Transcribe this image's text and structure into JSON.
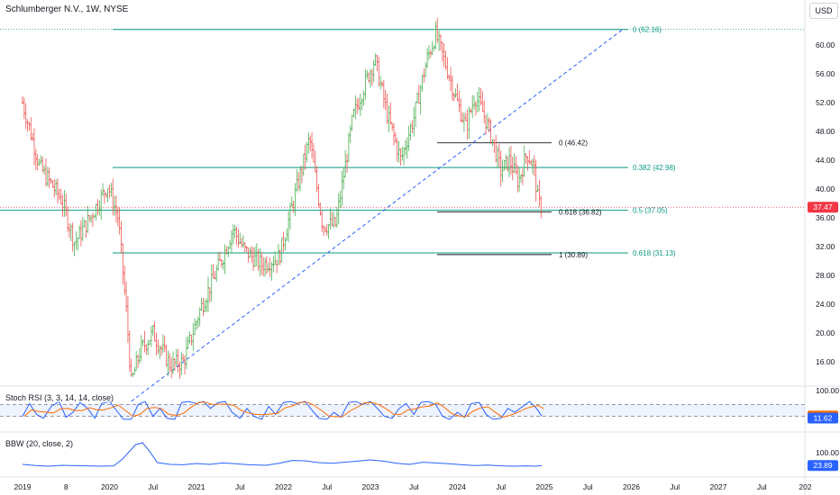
{
  "header": {
    "title": "Schlumberger N.V., 1W, NYSE",
    "currency_button": "USD"
  },
  "indicators": {
    "stoch_label": "Stoch RSI (3, 3, 14, 14, close)",
    "bbw_label": "BBW (20, close, 2)"
  },
  "colors": {
    "up": "#26a69a",
    "down": "#ef5350",
    "candle_up": "#4caf50",
    "fib_green": "#089981",
    "trendline": "#2962ff",
    "price_badge": "#f23645",
    "k_line": "#2962ff",
    "d_line": "#ff6d00",
    "bbw_line": "#2962ff",
    "value_badge": "#2962ff"
  },
  "chart_data": {
    "type": "candlestick",
    "symbol": "Schlumberger N.V.",
    "interval": "1W",
    "exchange": "NYSE",
    "last_price": "37.47",
    "yaxis_ticks": [
      "60.00",
      "56.00",
      "52.00",
      "48.00",
      "44.00",
      "40.00",
      "36.00",
      "32.00",
      "28.00",
      "24.00",
      "20.00",
      "16.00"
    ],
    "xaxis_ticks": [
      "2019",
      "8",
      "2020",
      "Jul",
      "2021",
      "Jul",
      "2022",
      "Jul",
      "2023",
      "Jul",
      "2024",
      "Jul",
      "2025",
      "Jul",
      "2026",
      "Jul",
      "2027",
      "Jul",
      "202"
    ],
    "weekly_close_path": [
      {
        "t": 2019.0,
        "price": 52.0
      },
      {
        "t": 2019.2,
        "price": 43.0
      },
      {
        "t": 2019.45,
        "price": 38.5
      },
      {
        "t": 2019.6,
        "price": 32.5
      },
      {
        "t": 2019.8,
        "price": 36.5
      },
      {
        "t": 2019.98,
        "price": 40.5
      },
      {
        "t": 2020.1,
        "price": 36.0
      },
      {
        "t": 2020.2,
        "price": 22.0
      },
      {
        "t": 2020.25,
        "price": 13.0
      },
      {
        "t": 2020.35,
        "price": 17.5
      },
      {
        "t": 2020.5,
        "price": 20.0
      },
      {
        "t": 2020.7,
        "price": 15.5
      },
      {
        "t": 2020.85,
        "price": 16.0
      },
      {
        "t": 2021.05,
        "price": 23.5
      },
      {
        "t": 2021.3,
        "price": 30.5
      },
      {
        "t": 2021.42,
        "price": 34.5
      },
      {
        "t": 2021.55,
        "price": 31.5
      },
      {
        "t": 2021.75,
        "price": 29.5
      },
      {
        "t": 2021.95,
        "price": 30.5
      },
      {
        "t": 2022.15,
        "price": 40.0
      },
      {
        "t": 2022.3,
        "price": 47.0
      },
      {
        "t": 2022.45,
        "price": 35.0
      },
      {
        "t": 2022.6,
        "price": 35.0
      },
      {
        "t": 2022.8,
        "price": 50.0
      },
      {
        "t": 2022.95,
        "price": 55.0
      },
      {
        "t": 2023.05,
        "price": 58.0
      },
      {
        "t": 2023.2,
        "price": 50.0
      },
      {
        "t": 2023.35,
        "price": 44.0
      },
      {
        "t": 2023.5,
        "price": 50.0
      },
      {
        "t": 2023.65,
        "price": 58.0
      },
      {
        "t": 2023.75,
        "price": 61.5
      },
      {
        "t": 2023.9,
        "price": 56.0
      },
      {
        "t": 2024.0,
        "price": 52.0
      },
      {
        "t": 2024.1,
        "price": 48.5
      },
      {
        "t": 2024.2,
        "price": 53.0
      },
      {
        "t": 2024.3,
        "price": 50.5
      },
      {
        "t": 2024.4,
        "price": 47.0
      },
      {
        "t": 2024.5,
        "price": 42.5
      },
      {
        "t": 2024.6,
        "price": 44.0
      },
      {
        "t": 2024.7,
        "price": 41.0
      },
      {
        "t": 2024.8,
        "price": 45.0
      },
      {
        "t": 2024.88,
        "price": 43.0
      },
      {
        "t": 2024.93,
        "price": 38.0
      },
      {
        "t": 2024.97,
        "price": 37.47
      }
    ],
    "trendline": [
      {
        "t": 2020.25,
        "price": 10.5
      },
      {
        "t": 2025.9,
        "price": 62.16
      }
    ],
    "fib_right": [
      {
        "ratio": "0",
        "value": "62.16",
        "price": 62.16,
        "label": "0 (62.16)"
      },
      {
        "ratio": "0.382",
        "value": "42.98",
        "price": 42.98,
        "label": "0.382 (42.98)"
      },
      {
        "ratio": "0.5",
        "value": "37.05",
        "price": 37.05,
        "label": "0.5 (37.05)"
      },
      {
        "ratio": "0.618",
        "value": "31.13",
        "price": 31.13,
        "label": "0.618 (31.13)"
      }
    ],
    "fib_inner": [
      {
        "ratio": "0",
        "value": "46.42",
        "price": 46.42,
        "label": "0 (46.42)"
      },
      {
        "ratio": "0.618",
        "value": "36.82",
        "price": 36.82,
        "label": "0.618 (36.82)"
      },
      {
        "ratio": "1",
        "value": "30.89",
        "price": 30.89,
        "label": "1 (30.89)"
      }
    ],
    "stoch_rsi": {
      "yaxis_ticks": [
        "100.00"
      ],
      "bands": [
        80,
        20
      ],
      "k_value": "21.43",
      "d_value": "11.62",
      "k_path": [
        {
          "t": 2019.0,
          "v": 20
        },
        {
          "t": 2019.08,
          "v": 85
        },
        {
          "t": 2019.16,
          "v": 30
        },
        {
          "t": 2019.24,
          "v": 10
        },
        {
          "t": 2019.33,
          "v": 70
        },
        {
          "t": 2019.42,
          "v": 95
        },
        {
          "t": 2019.5,
          "v": 15
        },
        {
          "t": 2019.58,
          "v": 40
        },
        {
          "t": 2019.66,
          "v": 90
        },
        {
          "t": 2019.75,
          "v": 60
        },
        {
          "t": 2019.83,
          "v": 10
        },
        {
          "t": 2019.91,
          "v": 85
        },
        {
          "t": 2020.0,
          "v": 95
        },
        {
          "t": 2020.08,
          "v": 50
        },
        {
          "t": 2020.16,
          "v": 5
        },
        {
          "t": 2020.25,
          "v": 5
        },
        {
          "t": 2020.33,
          "v": 80
        },
        {
          "t": 2020.41,
          "v": 95
        },
        {
          "t": 2020.5,
          "v": 20
        },
        {
          "t": 2020.58,
          "v": 60
        },
        {
          "t": 2020.66,
          "v": 10
        },
        {
          "t": 2020.75,
          "v": 5
        },
        {
          "t": 2020.83,
          "v": 90
        },
        {
          "t": 2020.91,
          "v": 95
        },
        {
          "t": 2021.0,
          "v": 85
        },
        {
          "t": 2021.08,
          "v": 95
        },
        {
          "t": 2021.16,
          "v": 60
        },
        {
          "t": 2021.25,
          "v": 90
        },
        {
          "t": 2021.33,
          "v": 95
        },
        {
          "t": 2021.41,
          "v": 40
        },
        {
          "t": 2021.5,
          "v": 10
        },
        {
          "t": 2021.58,
          "v": 60
        },
        {
          "t": 2021.66,
          "v": 20
        },
        {
          "t": 2021.75,
          "v": 5
        },
        {
          "t": 2021.83,
          "v": 70
        },
        {
          "t": 2021.91,
          "v": 30
        },
        {
          "t": 2022.0,
          "v": 90
        },
        {
          "t": 2022.08,
          "v": 95
        },
        {
          "t": 2022.16,
          "v": 85
        },
        {
          "t": 2022.25,
          "v": 95
        },
        {
          "t": 2022.33,
          "v": 50
        },
        {
          "t": 2022.41,
          "v": 10
        },
        {
          "t": 2022.5,
          "v": 5
        },
        {
          "t": 2022.58,
          "v": 40
        },
        {
          "t": 2022.66,
          "v": 15
        },
        {
          "t": 2022.75,
          "v": 90
        },
        {
          "t": 2022.83,
          "v": 95
        },
        {
          "t": 2022.91,
          "v": 80
        },
        {
          "t": 2023.0,
          "v": 95
        },
        {
          "t": 2023.08,
          "v": 60
        },
        {
          "t": 2023.16,
          "v": 20
        },
        {
          "t": 2023.25,
          "v": 10
        },
        {
          "t": 2023.33,
          "v": 60
        },
        {
          "t": 2023.41,
          "v": 85
        },
        {
          "t": 2023.5,
          "v": 30
        },
        {
          "t": 2023.58,
          "v": 90
        },
        {
          "t": 2023.66,
          "v": 95
        },
        {
          "t": 2023.75,
          "v": 80
        },
        {
          "t": 2023.83,
          "v": 20
        },
        {
          "t": 2023.91,
          "v": 5
        },
        {
          "t": 2024.0,
          "v": 40
        },
        {
          "t": 2024.08,
          "v": 15
        },
        {
          "t": 2024.16,
          "v": 85
        },
        {
          "t": 2024.25,
          "v": 90
        },
        {
          "t": 2024.33,
          "v": 30
        },
        {
          "t": 2024.41,
          "v": 5
        },
        {
          "t": 2024.5,
          "v": 10
        },
        {
          "t": 2024.58,
          "v": 60
        },
        {
          "t": 2024.66,
          "v": 40
        },
        {
          "t": 2024.75,
          "v": 70
        },
        {
          "t": 2024.83,
          "v": 95
        },
        {
          "t": 2024.91,
          "v": 60
        },
        {
          "t": 2024.97,
          "v": 21.43
        }
      ]
    },
    "bbw": {
      "yaxis_ticks": [
        "100.00"
      ],
      "value": "23.89",
      "path": [
        {
          "t": 2019.0,
          "v": 30
        },
        {
          "t": 2019.15,
          "v": 24
        },
        {
          "t": 2019.3,
          "v": 20
        },
        {
          "t": 2019.45,
          "v": 25
        },
        {
          "t": 2019.6,
          "v": 23
        },
        {
          "t": 2019.75,
          "v": 22
        },
        {
          "t": 2019.9,
          "v": 20
        },
        {
          "t": 2020.05,
          "v": 22
        },
        {
          "t": 2020.15,
          "v": 60
        },
        {
          "t": 2020.3,
          "v": 140
        },
        {
          "t": 2020.38,
          "v": 150
        },
        {
          "t": 2020.45,
          "v": 110
        },
        {
          "t": 2020.55,
          "v": 40
        },
        {
          "t": 2020.7,
          "v": 30
        },
        {
          "t": 2020.85,
          "v": 28
        },
        {
          "t": 2021.0,
          "v": 35
        },
        {
          "t": 2021.15,
          "v": 30
        },
        {
          "t": 2021.3,
          "v": 38
        },
        {
          "t": 2021.45,
          "v": 34
        },
        {
          "t": 2021.6,
          "v": 28
        },
        {
          "t": 2021.8,
          "v": 25
        },
        {
          "t": 2021.95,
          "v": 36
        },
        {
          "t": 2022.1,
          "v": 52
        },
        {
          "t": 2022.25,
          "v": 50
        },
        {
          "t": 2022.4,
          "v": 40
        },
        {
          "t": 2022.55,
          "v": 36
        },
        {
          "t": 2022.7,
          "v": 42
        },
        {
          "t": 2022.85,
          "v": 48
        },
        {
          "t": 2023.0,
          "v": 55
        },
        {
          "t": 2023.15,
          "v": 48
        },
        {
          "t": 2023.3,
          "v": 36
        },
        {
          "t": 2023.45,
          "v": 30
        },
        {
          "t": 2023.6,
          "v": 42
        },
        {
          "t": 2023.75,
          "v": 38
        },
        {
          "t": 2023.9,
          "v": 34
        },
        {
          "t": 2024.05,
          "v": 28
        },
        {
          "t": 2024.2,
          "v": 24
        },
        {
          "t": 2024.35,
          "v": 26
        },
        {
          "t": 2024.5,
          "v": 22
        },
        {
          "t": 2024.65,
          "v": 20
        },
        {
          "t": 2024.8,
          "v": 22
        },
        {
          "t": 2024.9,
          "v": 20
        },
        {
          "t": 2024.97,
          "v": 23.89
        }
      ]
    }
  }
}
